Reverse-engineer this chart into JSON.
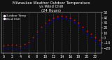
{
  "title_line1": "Milwaukee Weather Outdoor Temperature",
  "title_line2": "vs Wind Chill",
  "title_line3": "(24 Hours)",
  "bg_color": "#111111",
  "plot_bg_color": "#111111",
  "temp_color": "#ff0000",
  "windchill_color": "#0000ff",
  "text_color": "#ffffff",
  "hours": [
    0,
    1,
    2,
    3,
    4,
    5,
    6,
    7,
    8,
    9,
    10,
    11,
    12,
    13,
    14,
    15,
    16,
    17,
    18,
    19,
    20,
    21,
    22,
    23
  ],
  "temp": [
    -15,
    -14,
    -13,
    -14,
    -16,
    -12,
    -8,
    2,
    12,
    22,
    30,
    36,
    40,
    42,
    43,
    42,
    40,
    36,
    30,
    22,
    14,
    8,
    2,
    -4
  ],
  "windchill": [
    -22,
    -21,
    -20,
    -21,
    -23,
    -19,
    -15,
    -5,
    4,
    15,
    24,
    30,
    35,
    38,
    39,
    38,
    36,
    32,
    25,
    17,
    8,
    2,
    -5,
    -12
  ],
  "ylim": [
    -30,
    50
  ],
  "xlim": [
    -0.5,
    23.5
  ],
  "grid_color": "#555555",
  "grid_style": "--",
  "title_fontsize": 3.8,
  "tick_fontsize": 3.5,
  "marker_size": 1.8,
  "xtick_values": [
    0,
    2,
    4,
    6,
    8,
    10,
    12,
    14,
    16,
    18,
    20,
    22
  ],
  "ytick_values": [
    -20,
    -10,
    0,
    10,
    20,
    30,
    40,
    50
  ],
  "legend_labels": [
    "Outdoor Temp",
    "Wind Chill"
  ],
  "legend_fontsize": 3.0
}
